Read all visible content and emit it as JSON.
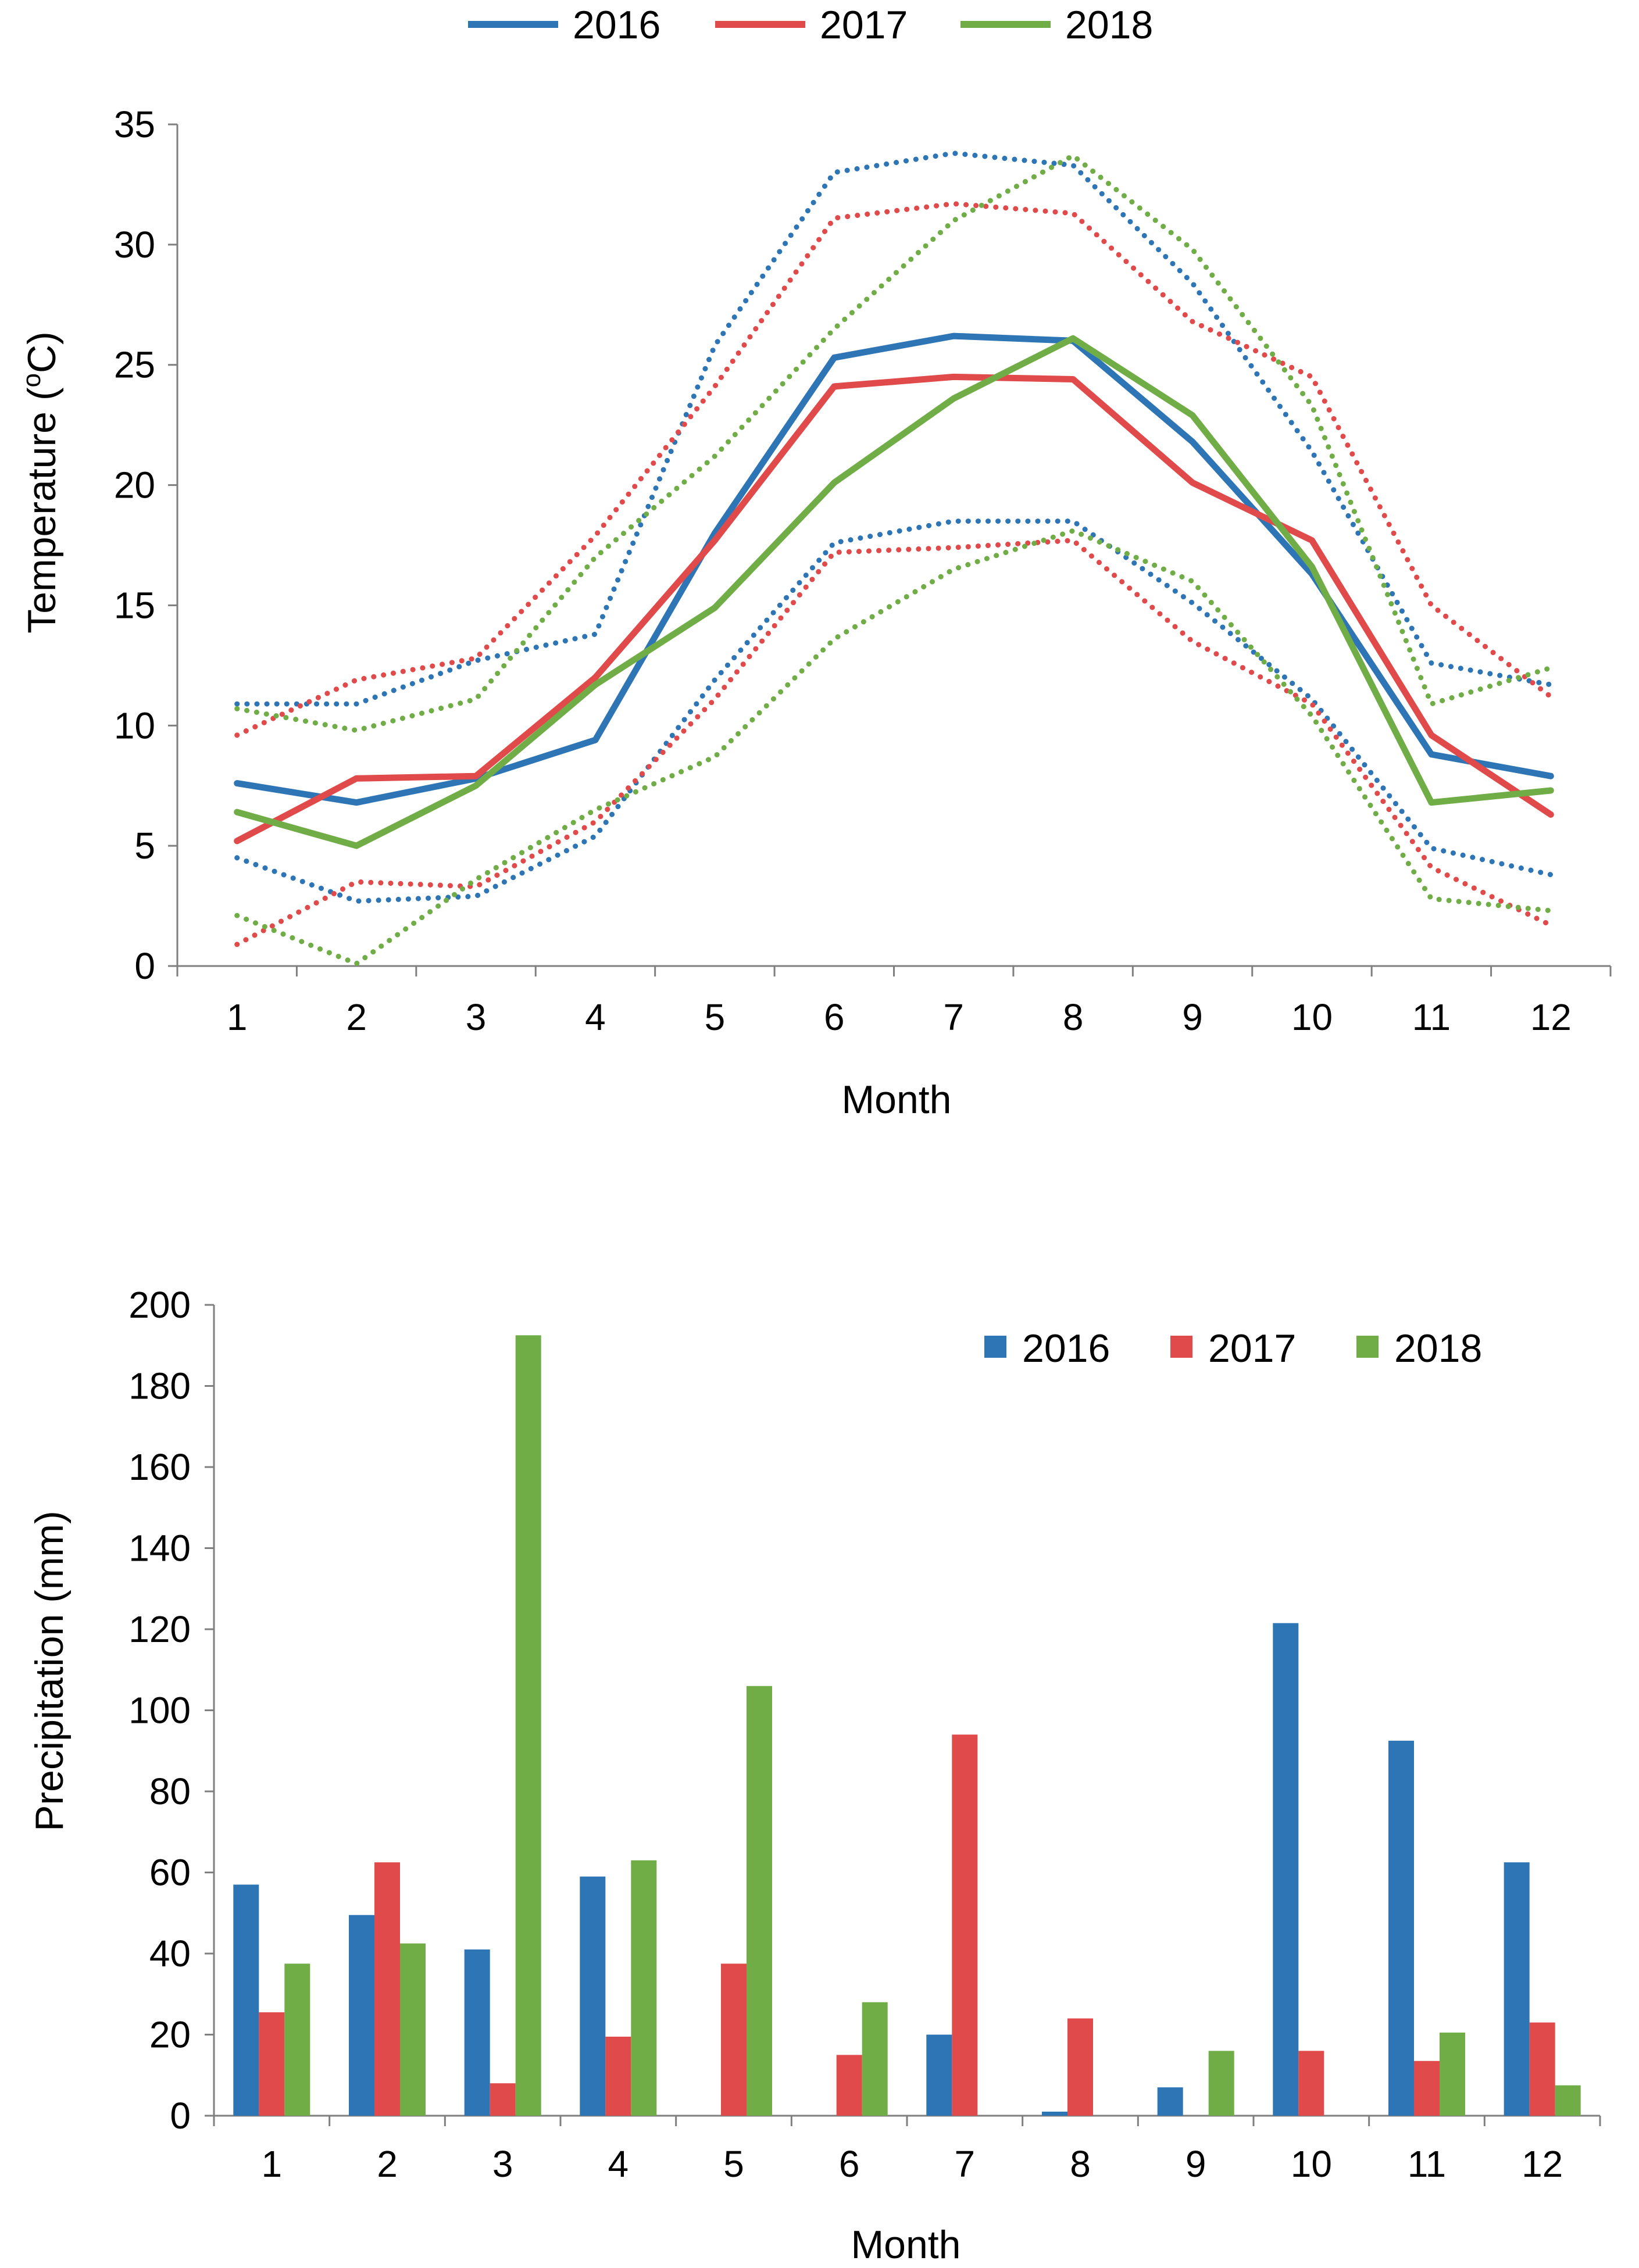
{
  "colors": {
    "2016": "#2e75b6",
    "2017": "#e04a4a",
    "2018": "#70ad47",
    "axis": "#7f7f7f"
  },
  "chart_data": [
    {
      "id": "temperature",
      "type": "line",
      "title": "",
      "xlabel": "Month",
      "ylabel": "Temperature (°C)",
      "ylabel_parts": {
        "main": "Temperature (",
        "sup": "o",
        "unit": "C)"
      },
      "categories": [
        "1",
        "2",
        "3",
        "4",
        "5",
        "6",
        "7",
        "8",
        "9",
        "10",
        "11",
        "12"
      ],
      "ylim": [
        0,
        35
      ],
      "yticks": [
        0,
        5,
        10,
        15,
        20,
        25,
        30,
        35
      ],
      "grid": false,
      "legend": {
        "position": "top-center",
        "entries": [
          "2016",
          "2017",
          "2018"
        ]
      },
      "series": [
        {
          "name": "2016",
          "kind": "mean",
          "style": "solid",
          "values": [
            7.6,
            6.8,
            7.8,
            9.4,
            18.0,
            25.3,
            26.2,
            26.0,
            21.8,
            16.3,
            8.8,
            7.9
          ]
        },
        {
          "name": "2017",
          "kind": "mean",
          "style": "solid",
          "values": [
            5.2,
            7.8,
            7.9,
            12.0,
            17.7,
            24.1,
            24.5,
            24.4,
            20.1,
            17.7,
            9.6,
            6.3
          ]
        },
        {
          "name": "2018",
          "kind": "mean",
          "style": "solid",
          "values": [
            6.4,
            5.0,
            7.5,
            11.7,
            14.9,
            20.1,
            23.6,
            26.1,
            22.9,
            16.6,
            6.8,
            7.3
          ]
        },
        {
          "name": "2016",
          "kind": "max",
          "style": "dotted",
          "values": [
            10.9,
            10.9,
            12.7,
            13.8,
            25.8,
            33.0,
            33.8,
            33.3,
            28.4,
            21.4,
            12.6,
            11.7
          ]
        },
        {
          "name": "2017",
          "kind": "max",
          "style": "dotted",
          "values": [
            9.6,
            11.9,
            12.8,
            17.9,
            24.1,
            31.1,
            31.7,
            31.3,
            26.8,
            24.5,
            15.0,
            11.2
          ]
        },
        {
          "name": "2018",
          "kind": "max",
          "style": "dotted",
          "values": [
            10.7,
            9.8,
            11.1,
            17.0,
            21.2,
            26.5,
            31.0,
            33.7,
            29.8,
            23.3,
            10.9,
            12.4
          ]
        },
        {
          "name": "2016",
          "kind": "min",
          "style": "dotted",
          "values": [
            4.5,
            2.7,
            2.9,
            5.4,
            11.9,
            17.6,
            18.5,
            18.5,
            15.1,
            11.1,
            4.9,
            3.8
          ]
        },
        {
          "name": "2017",
          "kind": "min",
          "style": "dotted",
          "values": [
            0.9,
            3.5,
            3.3,
            6.0,
            11.1,
            17.2,
            17.4,
            17.7,
            13.5,
            10.9,
            4.1,
            1.7
          ]
        },
        {
          "name": "2018",
          "kind": "min",
          "style": "dotted",
          "values": [
            2.1,
            0.1,
            3.6,
            6.5,
            8.7,
            13.6,
            16.5,
            18.1,
            16.0,
            10.4,
            2.8,
            2.3
          ]
        }
      ]
    },
    {
      "id": "precipitation",
      "type": "bar",
      "title": "",
      "xlabel": "Month",
      "ylabel": "Precipitation (mm)",
      "categories": [
        "1",
        "2",
        "3",
        "4",
        "5",
        "6",
        "7",
        "8",
        "9",
        "10",
        "11",
        "12"
      ],
      "ylim": [
        0,
        200
      ],
      "yticks": [
        0,
        20,
        40,
        60,
        80,
        100,
        120,
        140,
        160,
        180,
        200
      ],
      "grid": false,
      "legend": {
        "position": "top-right",
        "entries": [
          "2016",
          "2017",
          "2018"
        ]
      },
      "series": [
        {
          "name": "2016",
          "values": [
            57,
            49.5,
            41,
            59,
            0,
            0,
            20,
            1,
            7,
            121.5,
            92.5,
            62.5
          ]
        },
        {
          "name": "2017",
          "values": [
            25.5,
            62.5,
            8,
            19.5,
            37.5,
            15,
            94,
            24,
            0,
            16,
            13.5,
            23
          ]
        },
        {
          "name": "2018",
          "values": [
            37.5,
            42.5,
            192.5,
            63,
            106,
            28,
            0,
            0,
            16,
            0,
            20.5,
            7.5
          ]
        }
      ]
    }
  ]
}
